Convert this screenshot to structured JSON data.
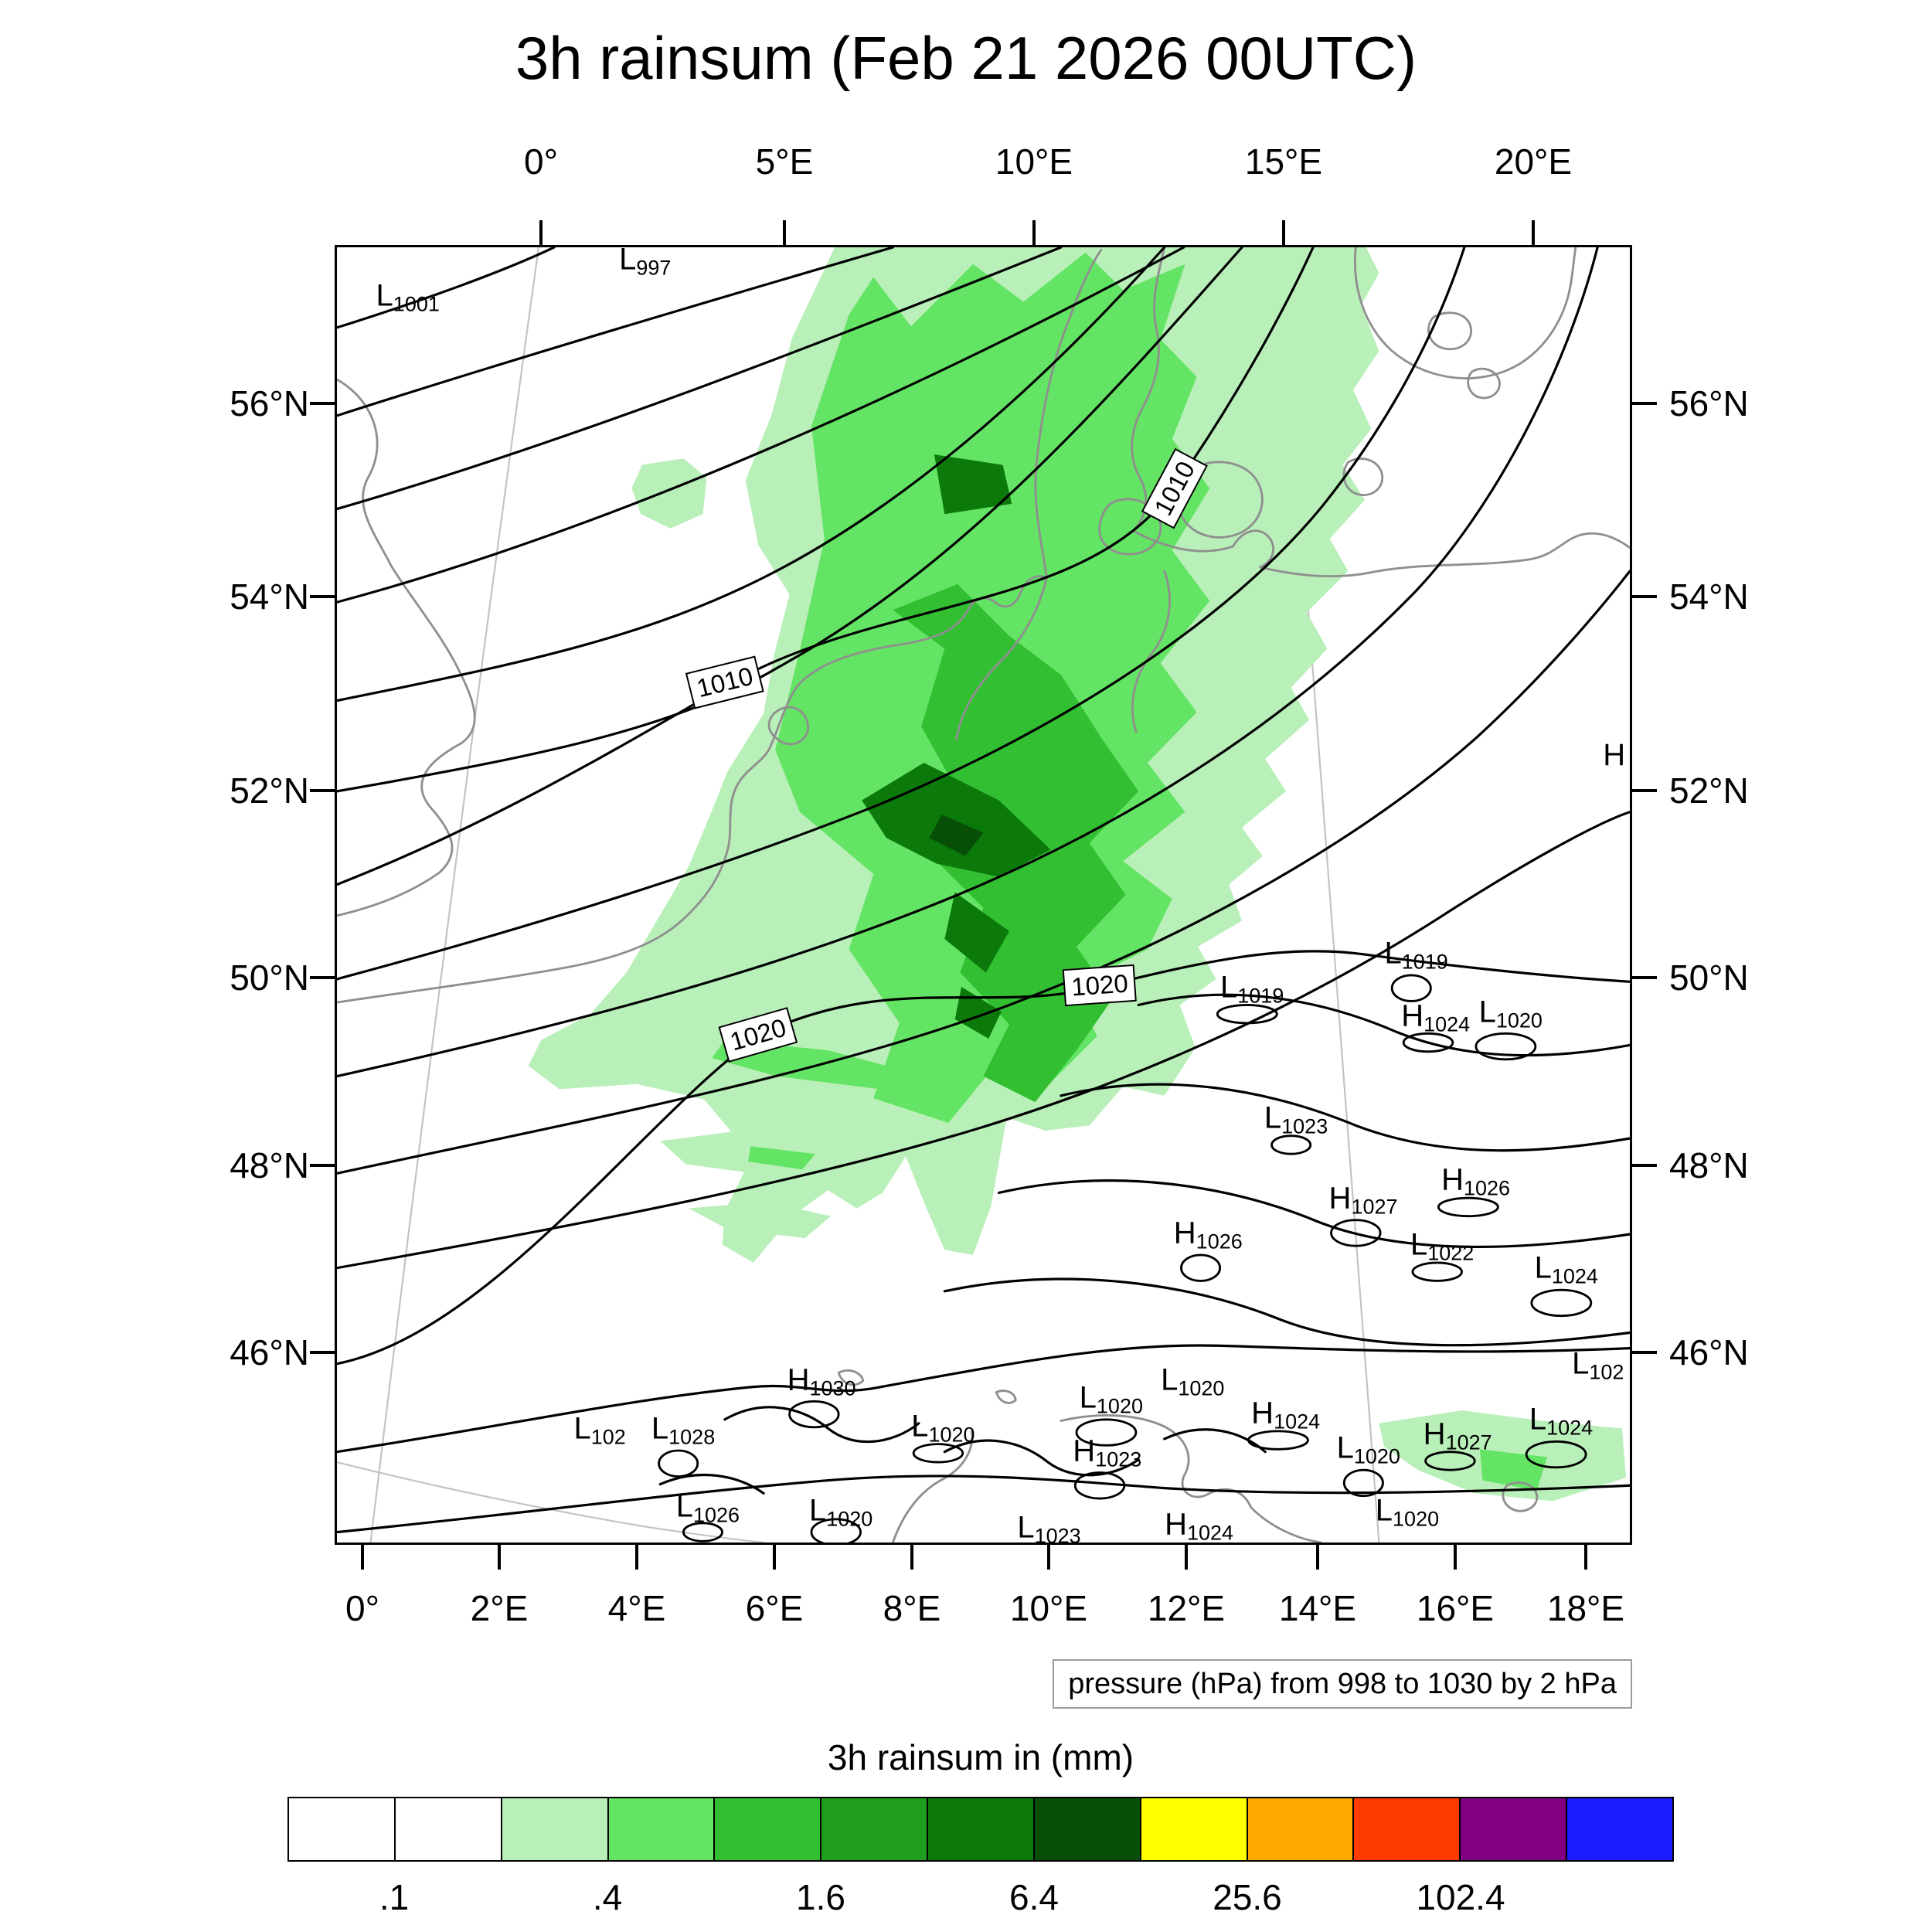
{
  "chart_data": {
    "type": "heatmap",
    "title": "3h rainsum (Feb 21 2026 00UTC)",
    "field": "3h rainsum",
    "valid_time": "Feb 21 2026 00UTC",
    "x_ticks_top": [
      "0°",
      "5°E",
      "10°E",
      "15°E",
      "20°E"
    ],
    "x_ticks_bottom": [
      "0°",
      "2°E",
      "4°E",
      "6°E",
      "8°E",
      "10°E",
      "12°E",
      "14°E",
      "16°E",
      "18°E"
    ],
    "y_ticks_left": [
      "56°N",
      "54°N",
      "52°N",
      "50°N",
      "48°N",
      "46°N"
    ],
    "y_ticks_right": [
      "56°N",
      "54°N",
      "52°N",
      "50°N",
      "48°N",
      "46°N"
    ],
    "colorbar": {
      "title": "3h rainsum in (mm)",
      "units": "mm",
      "tick_labels": [
        ".1",
        ".4",
        "1.6",
        "6.4",
        "25.6",
        "102.4"
      ],
      "colors": [
        "#FFFFFF",
        "#FFFFFF",
        "#B9F0B9",
        "#64E464",
        "#32C032",
        "#1F9E1F",
        "#0B7A0B",
        "#074F07",
        "#FFFF00",
        "#FFA800",
        "#FF3B00",
        "#800080",
        "#1C1CFF"
      ]
    },
    "pressure": {
      "caption": "pressure (hPa) from 998 to 1030 by 2 hPa",
      "min_hpa": 998,
      "max_hpa": 1030,
      "interval_hpa": 2,
      "contour_line_labels": [
        {
          "text": "1010",
          "x_pct": 64.8,
          "y_pct": 18.6,
          "rot_deg": -62
        },
        {
          "text": "1010",
          "x_pct": 30.0,
          "y_pct": 33.6,
          "rot_deg": -14
        },
        {
          "text": "1020",
          "x_pct": 59.0,
          "y_pct": 57.0,
          "rot_deg": -4
        },
        {
          "text": "1020",
          "x_pct": 32.6,
          "y_pct": 60.8,
          "rot_deg": -16
        }
      ],
      "centers": [
        {
          "t": "L",
          "v": "997",
          "x": 22.3,
          "y": 1.0,
          "loop": false
        },
        {
          "t": "L",
          "v": "1001",
          "x": 3.5,
          "y": 3.8,
          "loop": false
        },
        {
          "t": "L",
          "v": "1019",
          "x": 68.8,
          "y": 57.2,
          "loop": true
        },
        {
          "t": "L",
          "v": "1019",
          "x": 81.5,
          "y": 54.6,
          "loop": true
        },
        {
          "t": "H",
          "v": "1024",
          "x": 82.8,
          "y": 59.4,
          "loop": true
        },
        {
          "t": "L",
          "v": "1020",
          "x": 88.8,
          "y": 59.1,
          "loop": true
        },
        {
          "t": "L",
          "v": "1023",
          "x": 72.2,
          "y": 67.3,
          "loop": true
        },
        {
          "t": "H",
          "v": "1027",
          "x": 77.2,
          "y": 73.5,
          "loop": true
        },
        {
          "t": "H",
          "v": "1026",
          "x": 85.9,
          "y": 72.1,
          "loop": true
        },
        {
          "t": "H",
          "v": "1026",
          "x": 65.2,
          "y": 76.2,
          "loop": true
        },
        {
          "t": "L",
          "v": "1022",
          "x": 83.5,
          "y": 77.1,
          "loop": true
        },
        {
          "t": "L",
          "v": "1024",
          "x": 93.1,
          "y": 78.9,
          "loop": true
        },
        {
          "t": "L",
          "v": "102",
          "x": 96.0,
          "y": 86.3,
          "loop": false
        },
        {
          "t": "H",
          "v": "1030",
          "x": 35.3,
          "y": 87.5,
          "loop": true
        },
        {
          "t": "L",
          "v": "102",
          "x": 18.8,
          "y": 91.3,
          "loop": false
        },
        {
          "t": "L",
          "v": "1028",
          "x": 24.8,
          "y": 91.3,
          "loop": true
        },
        {
          "t": "L",
          "v": "1020",
          "x": 44.9,
          "y": 91.1,
          "loop": true
        },
        {
          "t": "L",
          "v": "1020",
          "x": 57.9,
          "y": 88.9,
          "loop": true
        },
        {
          "t": "L",
          "v": "1020",
          "x": 64.2,
          "y": 87.5,
          "loop": false
        },
        {
          "t": "H",
          "v": "1023",
          "x": 57.4,
          "y": 93.0,
          "loop": true
        },
        {
          "t": "H",
          "v": "1024",
          "x": 71.2,
          "y": 90.1,
          "loop": true
        },
        {
          "t": "L",
          "v": "1020",
          "x": 77.8,
          "y": 92.8,
          "loop": true
        },
        {
          "t": "H",
          "v": "1027",
          "x": 84.5,
          "y": 91.7,
          "loop": true
        },
        {
          "t": "L",
          "v": "1024",
          "x": 92.7,
          "y": 90.6,
          "loop": true
        },
        {
          "t": "L",
          "v": "1026",
          "x": 26.7,
          "y": 97.3,
          "loop": true
        },
        {
          "t": "L",
          "v": "1020",
          "x": 37.0,
          "y": 97.6,
          "loop": true
        },
        {
          "t": "L",
          "v": "1023",
          "x": 53.1,
          "y": 98.9,
          "loop": false
        },
        {
          "t": "H",
          "v": "1024",
          "x": 64.5,
          "y": 98.7,
          "loop": false
        },
        {
          "t": "L",
          "v": "1020",
          "x": 80.8,
          "y": 97.6,
          "loop": false
        },
        {
          "t": "H",
          "v": "",
          "x": 98.4,
          "y": 39.2,
          "loop": false
        }
      ]
    }
  },
  "map_style": {
    "coast_color": "#8F8F8F",
    "contour_color": "#000000",
    "graticule_color": "#C3C3C3",
    "frame_color": "#000000",
    "background": "#FFFFFF"
  }
}
